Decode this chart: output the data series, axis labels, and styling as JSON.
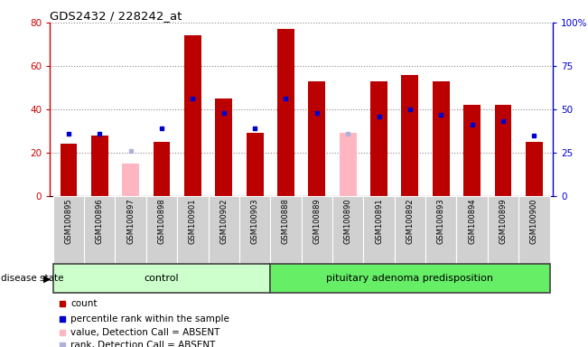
{
  "title": "GDS2432 / 228242_at",
  "samples": [
    "GSM100895",
    "GSM100896",
    "GSM100897",
    "GSM100898",
    "GSM100901",
    "GSM100902",
    "GSM100903",
    "GSM100888",
    "GSM100889",
    "GSM100890",
    "GSM100891",
    "GSM100892",
    "GSM100893",
    "GSM100894",
    "GSM100899",
    "GSM100900"
  ],
  "count_values": [
    24,
    28,
    0,
    25,
    74,
    45,
    29,
    77,
    53,
    0,
    53,
    56,
    53,
    42,
    42,
    25
  ],
  "absent_value_values": [
    0,
    0,
    15,
    0,
    0,
    0,
    0,
    0,
    0,
    29,
    0,
    0,
    0,
    0,
    0,
    0
  ],
  "percentile_rank_values": [
    36,
    36,
    0,
    39,
    56,
    48,
    39,
    56,
    48,
    0,
    46,
    50,
    47,
    41,
    43,
    35
  ],
  "absent_rank_values": [
    0,
    0,
    26,
    0,
    0,
    0,
    0,
    0,
    0,
    36,
    0,
    0,
    0,
    0,
    0,
    0
  ],
  "control_count": 7,
  "adenoma_count": 9,
  "control_label": "control",
  "adenoma_label": "pituitary adenoma predisposition",
  "disease_state_label": "disease state",
  "left_ylim": [
    0,
    80
  ],
  "right_ylim": [
    0,
    100
  ],
  "left_ticks": [
    0,
    20,
    40,
    60,
    80
  ],
  "right_ticks": [
    0,
    25,
    50,
    75,
    100
  ],
  "right_tick_labels": [
    "0",
    "25",
    "50",
    "75",
    "100%"
  ],
  "bar_color_count": "#bb0000",
  "bar_color_absent_value": "#ffb6c1",
  "dot_color_rank": "#0000cc",
  "dot_color_absent_rank": "#b0b0dd",
  "control_bg": "#ccffcc",
  "adenoma_bg": "#66ee66",
  "sample_bg": "#d0d0d0",
  "legend_items": [
    {
      "label": "count",
      "color": "#bb0000"
    },
    {
      "label": "percentile rank within the sample",
      "color": "#0000cc"
    },
    {
      "label": "value, Detection Call = ABSENT",
      "color": "#ffb6c1"
    },
    {
      "label": "rank, Detection Call = ABSENT",
      "color": "#b0b0dd"
    }
  ]
}
